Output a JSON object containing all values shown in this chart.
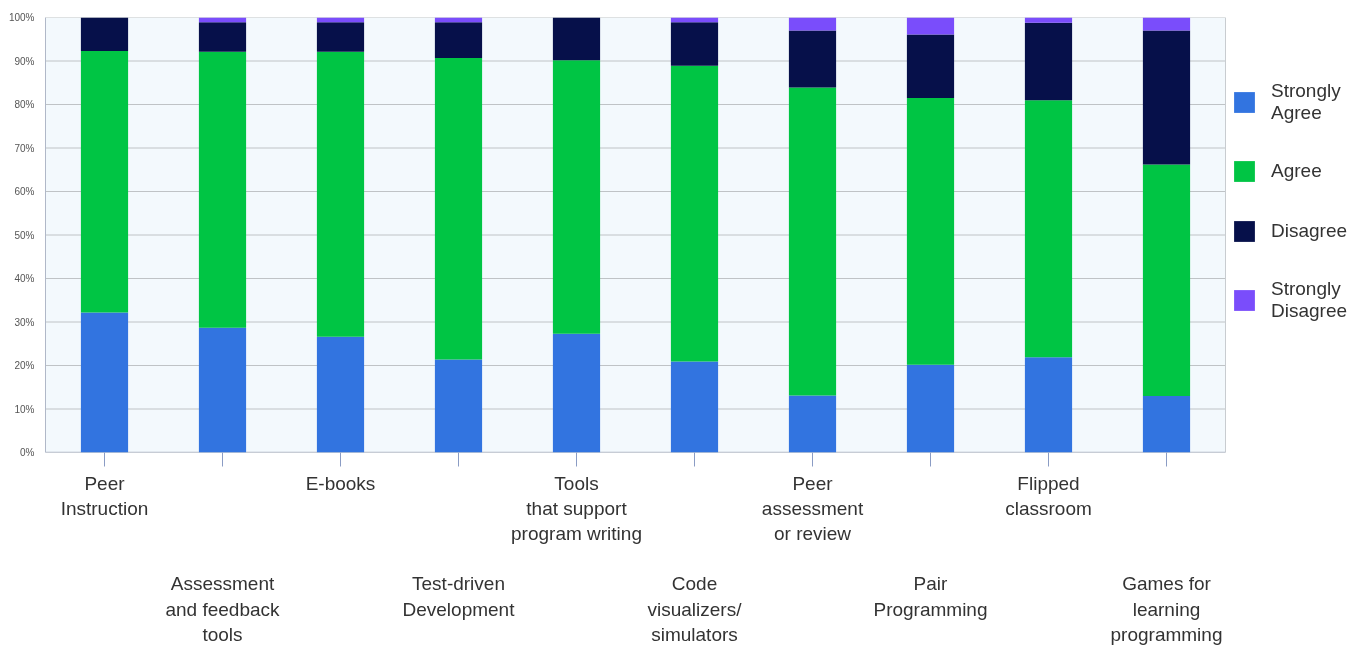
{
  "chart_data": {
    "type": "bar",
    "stacked": true,
    "categories": [
      "Peer\nInstruction",
      "Assessment\nand feedback\ntools",
      "E-books",
      "Test-driven\nDevelopment",
      "Tools\nthat support\nprogram writing",
      "Code\nvisualizers/\nsimulators",
      "Peer\nassessment\nor review",
      "Pair\nProgramming",
      "Flipped\nclassroom",
      "Games for\nlearning\nprogramming"
    ],
    "series": [
      {
        "name": "Strongly Agree",
        "color": "#3274e0",
        "values": [
          32.2,
          28.7,
          26.6,
          21.4,
          27.3,
          20.9,
          13.1,
          20.2,
          21.9,
          13.0
        ]
      },
      {
        "name": "Agree",
        "color": "#00c544",
        "values": [
          60.1,
          63.4,
          65.5,
          69.3,
          62.9,
          68.0,
          70.8,
          61.3,
          59.1,
          53.2
        ]
      },
      {
        "name": "Disagree",
        "color": "#06104a",
        "values": [
          7.7,
          6.8,
          6.8,
          8.2,
          9.8,
          10.0,
          13.1,
          14.6,
          17.8,
          30.8
        ]
      },
      {
        "name": "Strongly Disagree",
        "color": "#7a4dfb",
        "values": [
          0,
          1.1,
          1.1,
          1.1,
          0,
          1.1,
          3.0,
          3.9,
          1.2,
          3.0
        ]
      }
    ],
    "ylim": [
      0,
      100
    ],
    "yticks": [
      {
        "value": 0,
        "label": "0%"
      },
      {
        "value": 10,
        "label": "10%"
      },
      {
        "value": 20,
        "label": "20%"
      },
      {
        "value": 30,
        "label": "30%"
      },
      {
        "value": 40,
        "label": "40%"
      },
      {
        "value": 50,
        "label": "50%"
      },
      {
        "value": 60,
        "label": "60%"
      },
      {
        "value": 70,
        "label": "70%"
      },
      {
        "value": 80,
        "label": "80%"
      },
      {
        "value": 90,
        "label": "90%"
      },
      {
        "value": 100,
        "label": "100%"
      }
    ],
    "grid": "y",
    "legend": "right"
  }
}
